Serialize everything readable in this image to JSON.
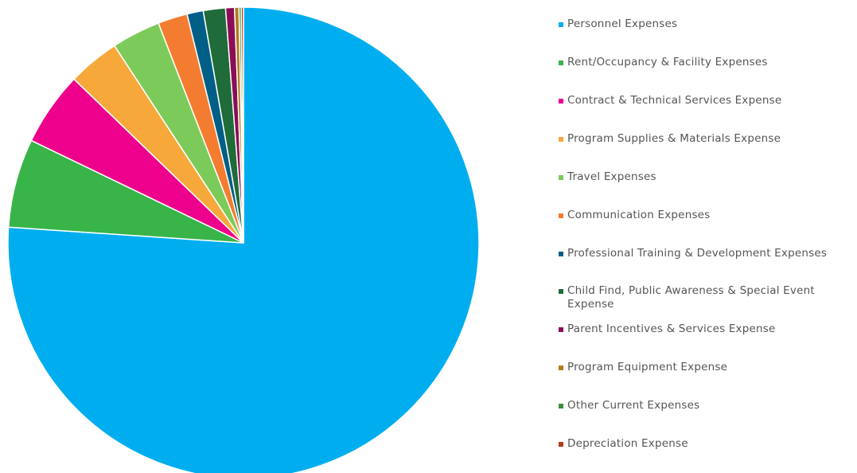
{
  "chart_data": {
    "type": "pie",
    "title": "",
    "legend_position": "right",
    "start_angle_deg": 0,
    "direction": "clockwise",
    "slices": [
      {
        "label": "Personnel Expenses",
        "value": 75.0,
        "color": "#00aeef"
      },
      {
        "label": "Rent/Occupancy & Facility Expenses",
        "value": 6.0,
        "color": "#38b449"
      },
      {
        "label": "Contract & Technical Services Expense",
        "value": 5.0,
        "color": "#ec008c"
      },
      {
        "label": "Program Supplies & Materials Expense",
        "value": 3.5,
        "color": "#f7a83b"
      },
      {
        "label": "Travel Expenses",
        "value": 3.3,
        "color": "#7ccb5a"
      },
      {
        "label": "Communication Expenses",
        "value": 2.0,
        "color": "#f47c30"
      },
      {
        "label": "Professional Training & Development Expenses",
        "value": 1.1,
        "color": "#005f86"
      },
      {
        "label": "Child Find, Public Awareness & Special Event Expense",
        "value": 1.5,
        "color": "#1f6b3a"
      },
      {
        "label": "Parent Incentives & Services Expense",
        "value": 0.6,
        "color": "#8b0d56"
      },
      {
        "label": "Program Equipment Expense",
        "value": 0.3,
        "color": "#b57a1e"
      },
      {
        "label": "Other Current Expenses",
        "value": 0.15,
        "color": "#3a8f3a"
      },
      {
        "label": "Depreciation Expense",
        "value": 0.15,
        "color": "#b23a1a"
      }
    ]
  }
}
